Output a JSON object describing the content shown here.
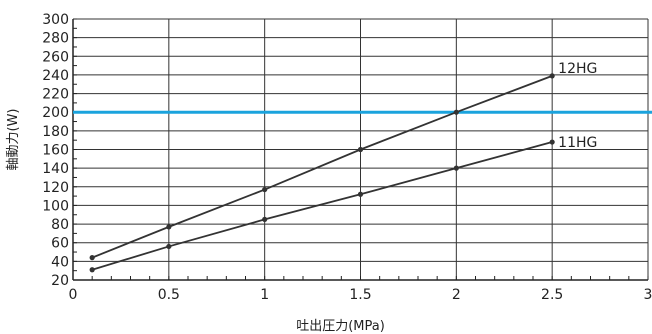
{
  "chart_data": {
    "type": "line",
    "title": "",
    "xlabel": "吐出圧力(MPa)",
    "ylabel": "軸動力(W)",
    "xlim": [
      0,
      3
    ],
    "ylim": [
      20,
      300
    ],
    "x_ticks": [
      0,
      0.5,
      1,
      1.5,
      2,
      2.5,
      3
    ],
    "x_tick_labels": [
      "0",
      "0.5",
      "1",
      "1.5",
      "2",
      "2.5",
      "3"
    ],
    "y_ticks": [
      20,
      40,
      60,
      80,
      100,
      120,
      140,
      160,
      180,
      200,
      220,
      240,
      260,
      280,
      300
    ],
    "y_tick_labels": [
      "20",
      "40",
      "60",
      "80",
      "100",
      "120",
      "140",
      "160",
      "180",
      "200",
      "220",
      "240",
      "260",
      "280",
      "300"
    ],
    "y_minor_step": 10,
    "grid": true,
    "series": [
      {
        "name": "12HG",
        "x": [
          0.1,
          0.5,
          1,
          1.5,
          2,
          2.5
        ],
        "y": [
          44,
          77,
          117,
          160,
          200,
          239
        ],
        "color": "#333333"
      },
      {
        "name": "11HG",
        "x": [
          0.1,
          0.5,
          1,
          1.5,
          2,
          2.5
        ],
        "y": [
          31,
          56,
          85,
          112,
          140,
          168
        ],
        "color": "#333333"
      }
    ],
    "reference_line": {
      "y": 200,
      "color": "#1aa3dd"
    }
  }
}
